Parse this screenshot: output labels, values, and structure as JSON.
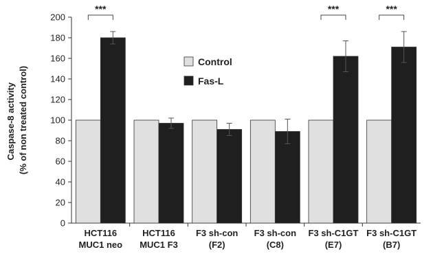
{
  "chart_data": {
    "type": "bar",
    "categories": [
      [
        "HCT116",
        "MUC1 neo"
      ],
      [
        "HCT116",
        "MUC1 F3"
      ],
      [
        "F3 sh-con",
        "(F2)"
      ],
      [
        "F3 sh-con",
        "(C8)"
      ],
      [
        "F3 sh-C1GT",
        "(E7)"
      ],
      [
        "F3 sh-C1GT",
        "(B7)"
      ]
    ],
    "series": [
      {
        "name": "Control",
        "values": [
          100,
          100,
          100,
          100,
          100,
          100
        ],
        "errors": [
          0,
          0,
          0,
          0,
          0,
          0
        ],
        "color": "#e0e0e0"
      },
      {
        "name": "Fas-L",
        "values": [
          180,
          97,
          91,
          89,
          162,
          171
        ],
        "errors": [
          6,
          5,
          6,
          12,
          15,
          15
        ],
        "color": "#1f1f1f"
      }
    ],
    "ylabel_lines": [
      "Caspase-8 activity",
      "(% of non treated control)"
    ],
    "ylim": [
      0,
      200
    ],
    "yticks": [
      0,
      20,
      40,
      60,
      80,
      100,
      120,
      140,
      160,
      180,
      200
    ],
    "legend_position": "center",
    "grid": false,
    "significance": [
      {
        "category_index": 0,
        "label": "***"
      },
      {
        "category_index": 4,
        "label": "***"
      },
      {
        "category_index": 5,
        "label": "***"
      }
    ]
  }
}
